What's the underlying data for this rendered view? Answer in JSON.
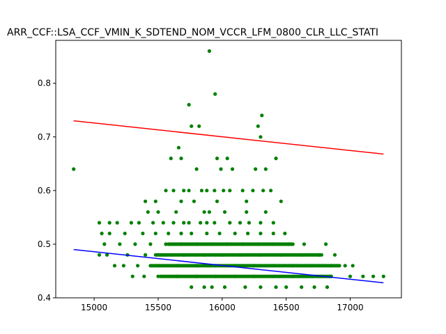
{
  "chart_data": {
    "type": "scatter",
    "title": "ARR_CCF::LSA_CCF_VMIN_K_SDTEND_NOM_VCCR_LFM_0800_CLR_LLC_STATI",
    "xlabel": "",
    "ylabel": "",
    "xlim": [
      14700,
      17400
    ],
    "ylim": [
      0.4,
      0.88
    ],
    "x_ticks": [
      15000,
      15500,
      16000,
      16500,
      17000
    ],
    "y_ticks": [
      0.4,
      0.5,
      0.6,
      0.7,
      0.8
    ],
    "x_tick_labels": [
      "15000",
      "15500",
      "16000",
      "16500",
      "17000"
    ],
    "y_tick_labels": [
      "0.4",
      "0.5",
      "0.6",
      "0.7",
      "0.8"
    ],
    "grid": false,
    "point_color": "#008000",
    "series": [
      {
        "color": "#008000",
        "points": [
          [
            14840,
            0.64
          ],
          [
            15900,
            0.86
          ],
          [
            15945,
            0.78
          ],
          [
            15740,
            0.76
          ],
          [
            15760,
            0.72
          ],
          [
            15820,
            0.72
          ],
          [
            16280,
            0.72
          ],
          [
            16300,
            0.7
          ],
          [
            16310,
            0.74
          ],
          [
            15660,
            0.68
          ],
          [
            15600,
            0.66
          ],
          [
            15680,
            0.66
          ],
          [
            15960,
            0.66
          ],
          [
            16040,
            0.66
          ],
          [
            16420,
            0.66
          ],
          [
            15800,
            0.64
          ],
          [
            15990,
            0.64
          ],
          [
            16080,
            0.64
          ],
          [
            16260,
            0.64
          ],
          [
            16340,
            0.64
          ],
          [
            15560,
            0.6
          ],
          [
            15620,
            0.6
          ],
          [
            15700,
            0.6
          ],
          [
            15740,
            0.6
          ],
          [
            15840,
            0.6
          ],
          [
            15880,
            0.6
          ],
          [
            15940,
            0.6
          ],
          [
            16010,
            0.6
          ],
          [
            16060,
            0.6
          ],
          [
            16160,
            0.6
          ],
          [
            16240,
            0.6
          ],
          [
            16320,
            0.6
          ],
          [
            16380,
            0.6
          ],
          [
            15400,
            0.58
          ],
          [
            15480,
            0.58
          ],
          [
            15680,
            0.58
          ],
          [
            15780,
            0.58
          ],
          [
            15960,
            0.58
          ],
          [
            16190,
            0.58
          ],
          [
            16460,
            0.58
          ],
          [
            15420,
            0.56
          ],
          [
            15500,
            0.56
          ],
          [
            15640,
            0.56
          ],
          [
            15860,
            0.56
          ],
          [
            15900,
            0.56
          ],
          [
            16020,
            0.56
          ],
          [
            16190,
            0.56
          ],
          [
            16340,
            0.56
          ],
          [
            15700,
            0.54
          ],
          [
            15740,
            0.54
          ],
          [
            15830,
            0.54
          ],
          [
            15880,
            0.54
          ],
          [
            15940,
            0.54
          ],
          [
            16060,
            0.54
          ],
          [
            16140,
            0.54
          ],
          [
            16210,
            0.54
          ],
          [
            16300,
            0.54
          ],
          [
            16400,
            0.54
          ],
          [
            15040,
            0.54
          ],
          [
            15120,
            0.54
          ],
          [
            15180,
            0.54
          ],
          [
            15290,
            0.54
          ],
          [
            15350,
            0.54
          ],
          [
            15460,
            0.54
          ],
          [
            15540,
            0.54
          ],
          [
            15620,
            0.54
          ],
          [
            15060,
            0.52
          ],
          [
            15120,
            0.52
          ],
          [
            15240,
            0.52
          ],
          [
            15380,
            0.52
          ],
          [
            15480,
            0.52
          ],
          [
            15580,
            0.52
          ],
          [
            15680,
            0.52
          ],
          [
            15760,
            0.52
          ],
          [
            15880,
            0.52
          ],
          [
            15980,
            0.52
          ],
          [
            16100,
            0.52
          ],
          [
            16200,
            0.52
          ],
          [
            16300,
            0.52
          ],
          [
            16400,
            0.52
          ],
          [
            16490,
            0.52
          ],
          [
            15080,
            0.5
          ],
          [
            15200,
            0.5
          ],
          [
            15320,
            0.5
          ],
          [
            15440,
            0.5
          ],
          [
            15560,
            0.5
          ],
          [
            15680,
            0.5
          ],
          [
            15800,
            0.5
          ],
          [
            15920,
            0.5
          ],
          [
            16040,
            0.5
          ],
          [
            16160,
            0.5
          ],
          [
            16280,
            0.5
          ],
          [
            16400,
            0.5
          ],
          [
            16520,
            0.5
          ],
          [
            16640,
            0.5
          ],
          [
            16810,
            0.5
          ],
          [
            15040,
            0.48
          ],
          [
            15100,
            0.48
          ],
          [
            15260,
            0.48
          ],
          [
            15400,
            0.48
          ],
          [
            15560,
            0.48
          ],
          [
            15700,
            0.48
          ],
          [
            15860,
            0.48
          ],
          [
            16000,
            0.48
          ],
          [
            16140,
            0.48
          ],
          [
            16300,
            0.48
          ],
          [
            16460,
            0.48
          ],
          [
            16620,
            0.48
          ],
          [
            16760,
            0.48
          ],
          [
            16880,
            0.48
          ],
          [
            15160,
            0.46
          ],
          [
            15230,
            0.46
          ],
          [
            15340,
            0.46
          ],
          [
            15500,
            0.46
          ],
          [
            15650,
            0.46
          ],
          [
            15800,
            0.46
          ],
          [
            15950,
            0.46
          ],
          [
            16100,
            0.46
          ],
          [
            16250,
            0.46
          ],
          [
            16400,
            0.46
          ],
          [
            16550,
            0.46
          ],
          [
            16700,
            0.46
          ],
          [
            16850,
            0.46
          ],
          [
            16960,
            0.46
          ],
          [
            17020,
            0.46
          ],
          [
            15300,
            0.44
          ],
          [
            15390,
            0.44
          ],
          [
            15500,
            0.44
          ],
          [
            15650,
            0.44
          ],
          [
            15800,
            0.44
          ],
          [
            15950,
            0.44
          ],
          [
            16100,
            0.44
          ],
          [
            16250,
            0.44
          ],
          [
            16400,
            0.44
          ],
          [
            16550,
            0.44
          ],
          [
            16700,
            0.44
          ],
          [
            16850,
            0.44
          ],
          [
            17000,
            0.44
          ],
          [
            17100,
            0.44
          ],
          [
            17180,
            0.44
          ],
          [
            17260,
            0.44
          ],
          [
            15760,
            0.42
          ],
          [
            15860,
            0.42
          ],
          [
            15920,
            0.42
          ],
          [
            16020,
            0.42
          ],
          [
            16180,
            0.42
          ],
          [
            16300,
            0.42
          ],
          [
            16420,
            0.42
          ],
          [
            16500,
            0.42
          ],
          [
            16620,
            0.42
          ],
          [
            16720,
            0.42
          ],
          [
            16820,
            0.42
          ]
        ]
      }
    ],
    "dense_rows": [
      {
        "y": 0.5,
        "from": 15580,
        "to": 16560
      },
      {
        "y": 0.48,
        "from": 15480,
        "to": 16780
      },
      {
        "y": 0.46,
        "from": 15440,
        "to": 16920
      },
      {
        "y": 0.44,
        "from": 15520,
        "to": 16860
      }
    ],
    "lines": [
      {
        "color": "#ff0000",
        "x": [
          14840,
          17260
        ],
        "y": [
          0.73,
          0.668
        ]
      },
      {
        "color": "#0000ff",
        "x": [
          14840,
          17260
        ],
        "y": [
          0.49,
          0.428
        ]
      }
    ]
  }
}
